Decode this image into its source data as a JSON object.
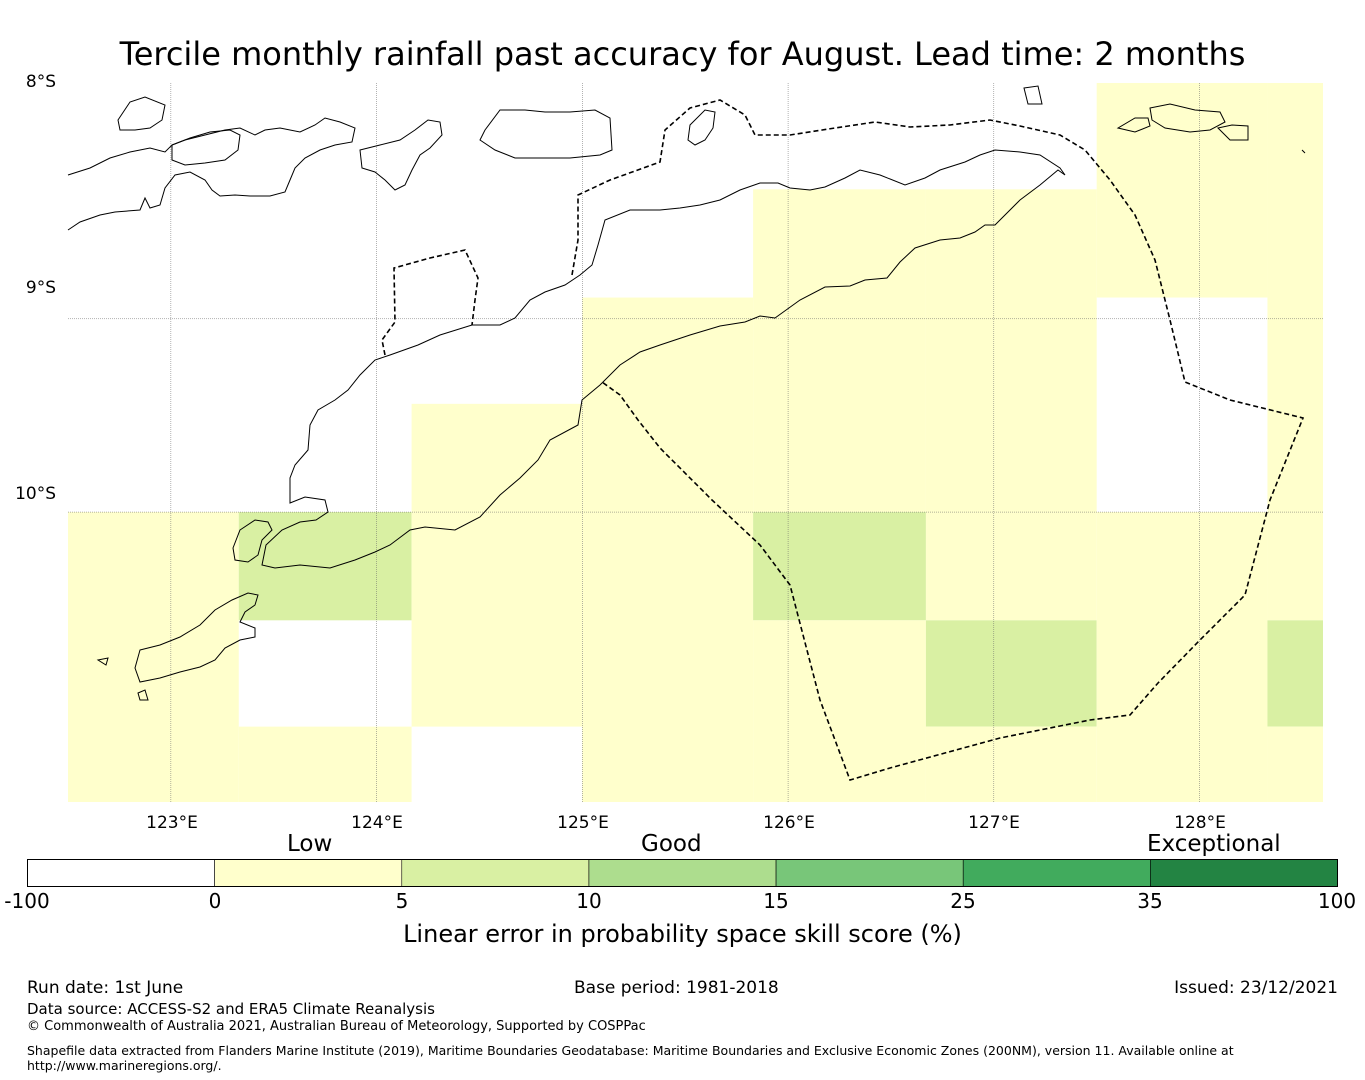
{
  "title": "Tercile monthly rainfall past accuracy for August. Lead time: 2 months",
  "lat_labels": [
    "8°S",
    "9°S",
    "10°S"
  ],
  "lon_labels": [
    "123°E",
    "124°E",
    "125°E",
    "126°E",
    "127°E",
    "128°E"
  ],
  "skill_grid": {
    "cells": [
      {
        "lon": [
          122.5,
          123.33
        ],
        "lat": [
          -10.0,
          -11.5
        ],
        "score": 2
      },
      {
        "lon": [
          123.33,
          124.17
        ],
        "lat": [
          -10.0,
          -10.56
        ],
        "score": 7
      },
      {
        "lon": [
          123.33,
          124.17
        ],
        "lat": [
          -11.11,
          -11.5
        ],
        "score": 2
      },
      {
        "lon": [
          124.17,
          125.0
        ],
        "lat": [
          -9.44,
          -11.11
        ],
        "score": 2
      },
      {
        "lon": [
          125.0,
          125.83
        ],
        "lat": [
          -8.89,
          -11.5
        ],
        "score": 2
      },
      {
        "lon": [
          125.83,
          126.67
        ],
        "lat": [
          -8.33,
          -10.0
        ],
        "score": 2
      },
      {
        "lon": [
          125.83,
          126.67
        ],
        "lat": [
          -10.0,
          -10.56
        ],
        "score": 7
      },
      {
        "lon": [
          125.83,
          126.67
        ],
        "lat": [
          -10.56,
          -11.5
        ],
        "score": 2
      },
      {
        "lon": [
          126.67,
          127.5
        ],
        "lat": [
          -8.33,
          -10.56
        ],
        "score": 2
      },
      {
        "lon": [
          126.67,
          127.5
        ],
        "lat": [
          -10.56,
          -11.11
        ],
        "score": 7
      },
      {
        "lon": [
          126.67,
          127.5
        ],
        "lat": [
          -11.11,
          -11.5
        ],
        "score": 2
      },
      {
        "lon": [
          127.5,
          128.33
        ],
        "lat": [
          -7.78,
          -8.89
        ],
        "score": 2
      },
      {
        "lon": [
          127.5,
          128.33
        ],
        "lat": [
          -10.0,
          -11.5
        ],
        "score": 2
      },
      {
        "lon": [
          128.33,
          128.6
        ],
        "lat": [
          -7.78,
          -10.56
        ],
        "score": 2
      },
      {
        "lon": [
          128.33,
          128.6
        ],
        "lat": [
          -10.56,
          -11.11
        ],
        "score": 7
      },
      {
        "lon": [
          128.33,
          128.6
        ],
        "lat": [
          -11.11,
          -11.5
        ],
        "score": 2
      }
    ]
  },
  "colorbar": {
    "categories": [
      "Low",
      "Good",
      "Exceptional"
    ],
    "ticks": [
      "-100",
      "0",
      "5",
      "10",
      "15",
      "25",
      "35",
      "100"
    ],
    "colors": [
      "#ffffff",
      "#ffffcc",
      "#d9f0a3",
      "#addd8e",
      "#78c679",
      "#41ab5d",
      "#238443"
    ],
    "label": "Linear error in probability space skill score (%)"
  },
  "footer": {
    "run_date": "Run date: 1st June",
    "base_period": "Base period: 1981-2018",
    "issued": "Issued: 23/12/2021",
    "data_source": "Data source: ACCESS-S2 and ERA5 Climate Reanalysis",
    "copyright": "© Commonwealth of Australia 2021, Australian Bureau of Meteorology, Supported by COSPPac",
    "shapefile": "Shapefile data extracted from Flanders Marine Institute (2019), Maritime Boundaries Geodatabase: Maritime Boundaries and Exclusive Economic Zones (200NM), version 11. Available online at http://www.marineregions.org/."
  }
}
